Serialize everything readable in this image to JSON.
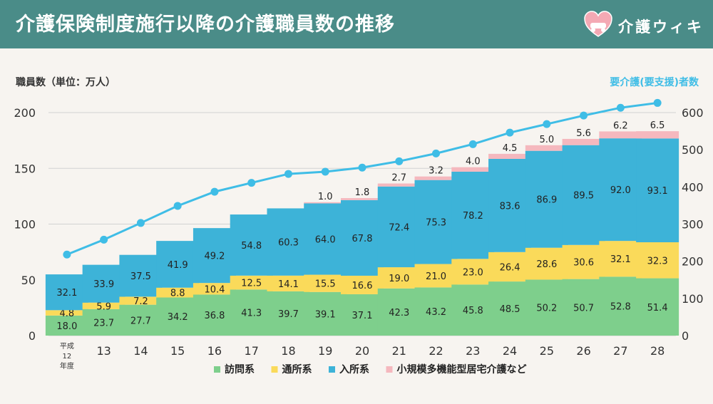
{
  "header": {
    "title": "介護保険制度施行以降の介護職員数の推移",
    "brand": "介護ウィキ",
    "logo_icon": "heart-hands-logo",
    "bg_color": "#4a8c88"
  },
  "chart_data": {
    "type": "bar",
    "stacked": true,
    "ylabel": "職員数（単位：万人）",
    "y2label": "要介護(要支援)者数",
    "ylim": [
      0,
      200
    ],
    "y2lim": [
      0,
      600
    ],
    "yticks": [
      0,
      50,
      100,
      150,
      200
    ],
    "y2ticks": [
      0,
      100,
      200,
      300,
      400,
      500,
      600
    ],
    "grid": true,
    "legend_position": "bottom",
    "categories": [
      "平成\n12\n年度",
      "13",
      "14",
      "15",
      "16",
      "17",
      "18",
      "19",
      "20",
      "21",
      "22",
      "23",
      "24",
      "25",
      "26",
      "27",
      "28"
    ],
    "series": [
      {
        "name": "訪問系",
        "color": "#7ecf8c",
        "values": [
          18.0,
          23.7,
          27.7,
          34.2,
          36.8,
          41.3,
          39.7,
          39.1,
          37.1,
          42.3,
          43.2,
          45.8,
          48.5,
          50.2,
          50.7,
          52.8,
          51.4
        ]
      },
      {
        "name": "通所系",
        "color": "#fada5a",
        "values": [
          4.8,
          5.9,
          7.2,
          8.8,
          10.4,
          12.5,
          14.1,
          15.5,
          16.6,
          19.0,
          21.0,
          23.0,
          26.4,
          28.6,
          30.6,
          32.1,
          32.3
        ]
      },
      {
        "name": "入所系",
        "color": "#3db3d8",
        "values": [
          32.1,
          33.9,
          37.5,
          41.9,
          49.2,
          54.8,
          60.3,
          64.0,
          67.8,
          72.4,
          75.3,
          78.2,
          83.6,
          86.9,
          89.5,
          92.0,
          93.1
        ]
      },
      {
        "name": "小規模多機能型居宅介護など",
        "color": "#f5b8be",
        "values": [
          null,
          null,
          null,
          null,
          null,
          null,
          null,
          1.0,
          1.8,
          2.7,
          3.2,
          4.0,
          4.5,
          5.0,
          5.6,
          6.2,
          6.5
        ]
      }
    ],
    "line": {
      "name": "要介護(要支援)者数",
      "axis": "y2",
      "color": "#3fbde6",
      "values": [
        218,
        258,
        303,
        349,
        387,
        411,
        435,
        441,
        452,
        469,
        490,
        515,
        546,
        569,
        592,
        613,
        626
      ]
    }
  }
}
